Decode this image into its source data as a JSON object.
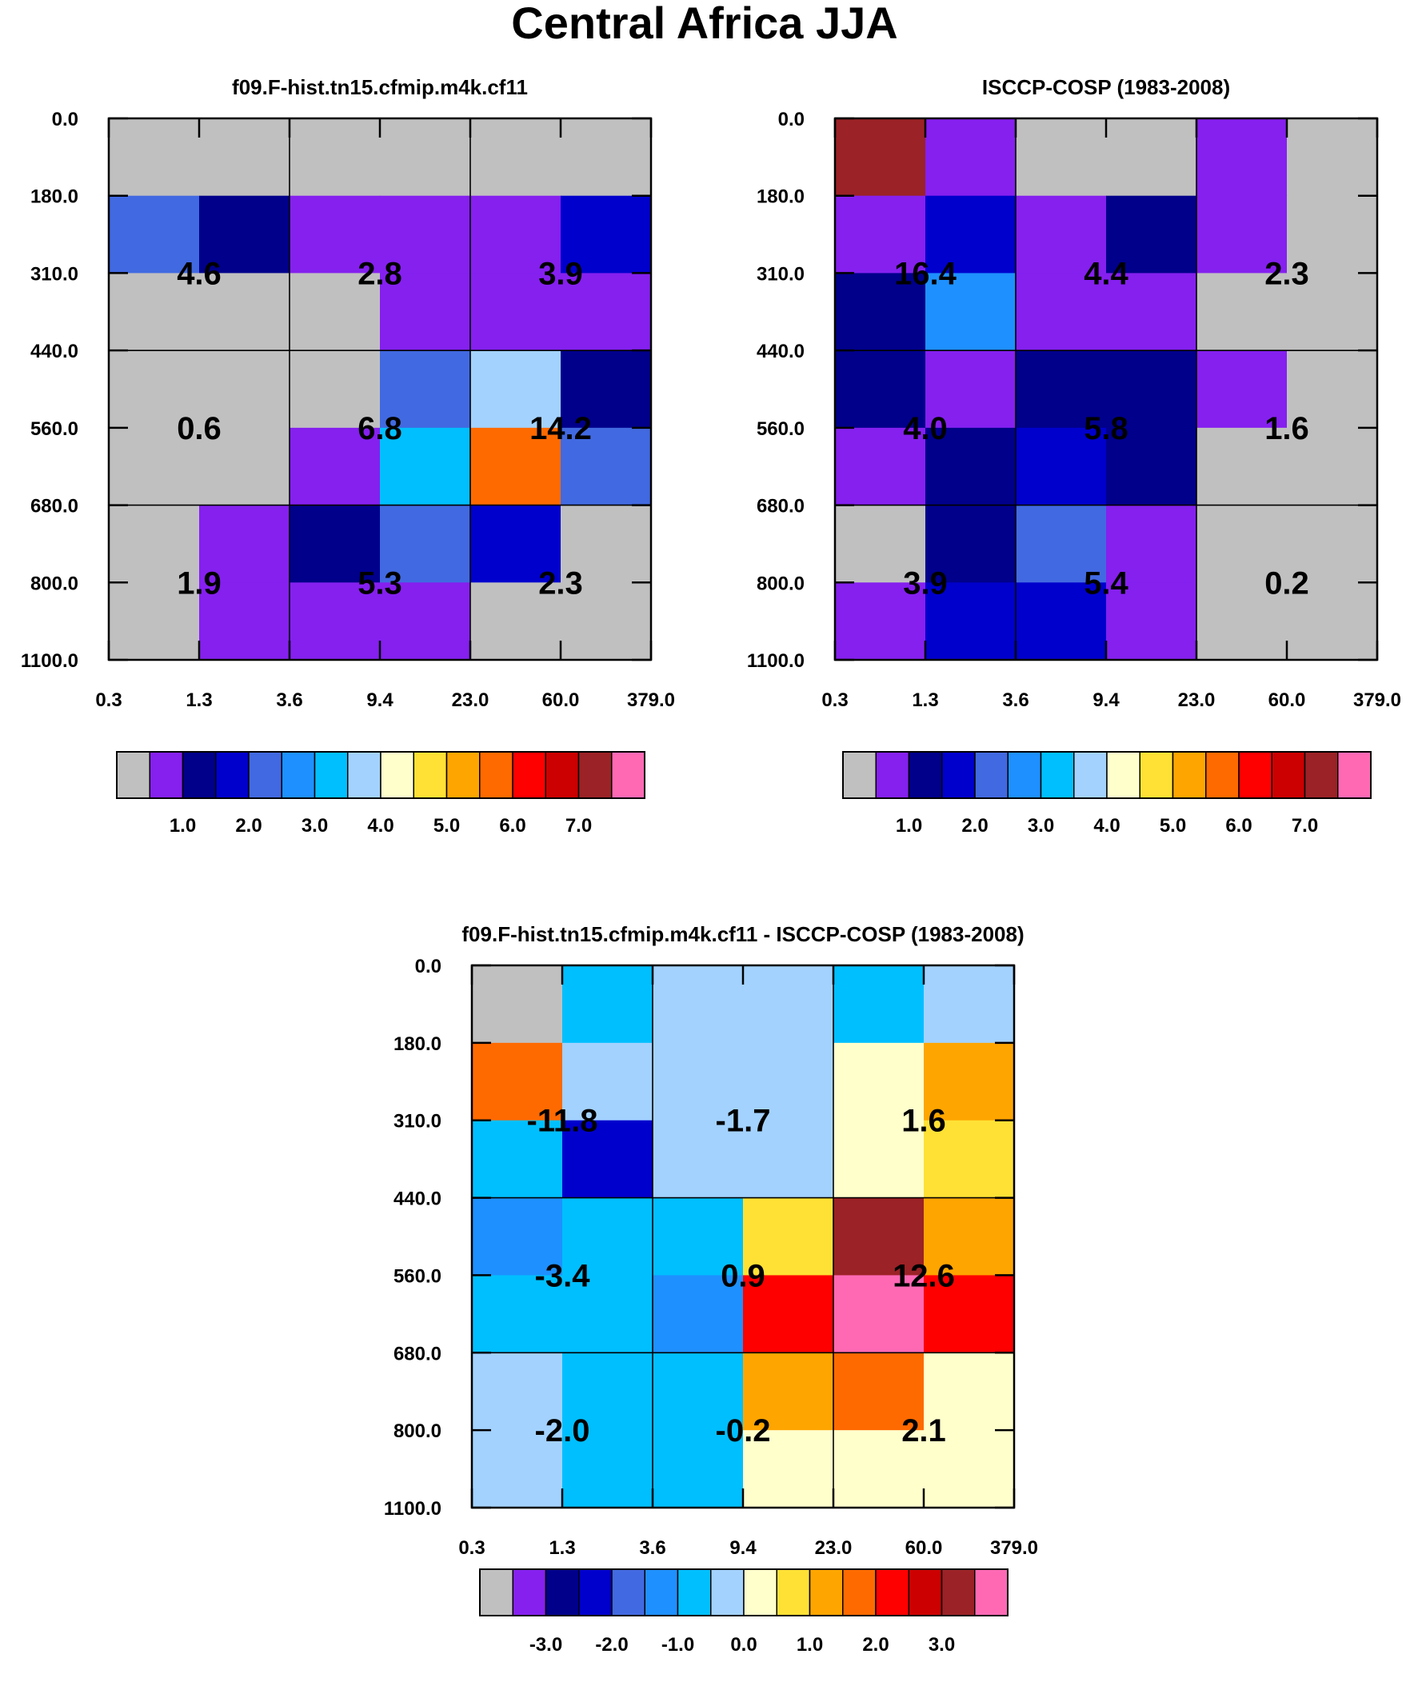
{
  "figure": {
    "title": "Central Africa JJA"
  },
  "chart_data": [
    {
      "type": "heatmap",
      "title": "f09.F-hist.tn15.cfmip.m4k.cf11",
      "x_ticks": [
        "0.3",
        "1.3",
        "3.6",
        "9.4",
        "23.0",
        "60.0",
        "379.0"
      ],
      "y_ticks": [
        "0.0",
        "180.0",
        "310.0",
        "440.0",
        "560.0",
        "680.0",
        "800.0",
        "1100.0"
      ],
      "cells": [
        [
          "gray",
          "gray",
          "gray",
          "gray",
          "gray",
          "gray"
        ],
        [
          "c4",
          "c2",
          "c1",
          "c1",
          "c1",
          "c3"
        ],
        [
          "gray",
          "gray",
          "gray",
          "c1",
          "c1",
          "c1"
        ],
        [
          "gray",
          "gray",
          "gray",
          "c4",
          "c7",
          "c2"
        ],
        [
          "gray",
          "gray",
          "c1",
          "c6",
          "c11",
          "c4"
        ],
        [
          "gray",
          "c1",
          "c2",
          "c4",
          "c3",
          "gray"
        ],
        [
          "gray",
          "c1",
          "c1",
          "c1",
          "gray",
          "gray"
        ]
      ],
      "group_values": [
        [
          "4.6",
          "2.8",
          "3.9"
        ],
        [
          "0.6",
          "6.8",
          "14.2"
        ],
        [
          "1.9",
          "5.3",
          "2.3"
        ]
      ],
      "colorbar": {
        "colors": [
          "#c0c0c0",
          "#8520ef",
          "#00008b",
          "#0000cd",
          "#4169e1",
          "#1e90ff",
          "#00bfff",
          "#a3d2ff",
          "#ffffcc",
          "#ffe135",
          "#ffa500",
          "#ff6a00",
          "#ff0000",
          "#cc0000",
          "#9b2226",
          "#ff69b4"
        ],
        "labels": [
          "1.0",
          "2.0",
          "3.0",
          "4.0",
          "5.0",
          "6.0",
          "7.0"
        ]
      }
    },
    {
      "type": "heatmap",
      "title": "ISCCP-COSP (1983-2008)",
      "x_ticks": [
        "0.3",
        "1.3",
        "3.6",
        "9.4",
        "23.0",
        "60.0",
        "379.0"
      ],
      "y_ticks": [
        "0.0",
        "180.0",
        "310.0",
        "440.0",
        "560.0",
        "680.0",
        "800.0",
        "1100.0"
      ],
      "cells": [
        [
          "c14",
          "c1",
          "gray",
          "gray",
          "c1",
          "gray"
        ],
        [
          "c1",
          "c3",
          "c1",
          "c2",
          "c1",
          "gray"
        ],
        [
          "c2",
          "c5",
          "c1",
          "c1",
          "gray",
          "gray"
        ],
        [
          "c2",
          "c1",
          "c2",
          "c2",
          "c1",
          "gray"
        ],
        [
          "c1",
          "c2",
          "c3",
          "c2",
          "gray",
          "gray"
        ],
        [
          "gray",
          "c2",
          "c4",
          "c1",
          "gray",
          "gray"
        ],
        [
          "c1",
          "c3",
          "c3",
          "c1",
          "gray",
          "gray"
        ]
      ],
      "group_values": [
        [
          "16.4",
          "4.4",
          "2.3"
        ],
        [
          "4.0",
          "5.8",
          "1.6"
        ],
        [
          "3.9",
          "5.4",
          "0.2"
        ]
      ],
      "colorbar": {
        "colors": [
          "#c0c0c0",
          "#8520ef",
          "#00008b",
          "#0000cd",
          "#4169e1",
          "#1e90ff",
          "#00bfff",
          "#a3d2ff",
          "#ffffcc",
          "#ffe135",
          "#ffa500",
          "#ff6a00",
          "#ff0000",
          "#cc0000",
          "#9b2226",
          "#ff69b4"
        ],
        "labels": [
          "1.0",
          "2.0",
          "3.0",
          "4.0",
          "5.0",
          "6.0",
          "7.0"
        ]
      }
    },
    {
      "type": "heatmap",
      "title": "f09.F-hist.tn15.cfmip.m4k.cf11 - ISCCP-COSP (1983-2008)",
      "x_ticks": [
        "0.3",
        "1.3",
        "3.6",
        "9.4",
        "23.0",
        "60.0",
        "379.0"
      ],
      "y_ticks": [
        "0.0",
        "180.0",
        "310.0",
        "440.0",
        "560.0",
        "680.0",
        "800.0",
        "1100.0"
      ],
      "cells": [
        [
          "gray",
          "c6",
          "c7",
          "c7",
          "c6",
          "c7"
        ],
        [
          "c11",
          "c7",
          "c7",
          "c7",
          "c8",
          "c10"
        ],
        [
          "c6",
          "c3",
          "c7",
          "c7",
          "c8",
          "c9"
        ],
        [
          "c5",
          "c6",
          "c6",
          "c9",
          "c14",
          "c10"
        ],
        [
          "c6",
          "c6",
          "c5",
          "c12",
          "c15",
          "c12"
        ],
        [
          "c7",
          "c6",
          "c6",
          "c10",
          "c11",
          "c8"
        ],
        [
          "c7",
          "c6",
          "c6",
          "c8",
          "c8",
          "c8"
        ]
      ],
      "group_values": [
        [
          "-11.8",
          "-1.7",
          "1.6"
        ],
        [
          "-3.4",
          "0.9",
          "12.6"
        ],
        [
          "-2.0",
          "-0.2",
          "2.1"
        ]
      ],
      "colorbar": {
        "colors": [
          "#c0c0c0",
          "#8520ef",
          "#00008b",
          "#0000cd",
          "#4169e1",
          "#1e90ff",
          "#00bfff",
          "#a3d2ff",
          "#ffffcc",
          "#ffe135",
          "#ffa500",
          "#ff6a00",
          "#ff0000",
          "#cc0000",
          "#9b2226",
          "#ff69b4"
        ],
        "labels": [
          "-3.0",
          "-2.0",
          "-1.0",
          "0.0",
          "1.0",
          "2.0",
          "3.0"
        ]
      }
    }
  ]
}
